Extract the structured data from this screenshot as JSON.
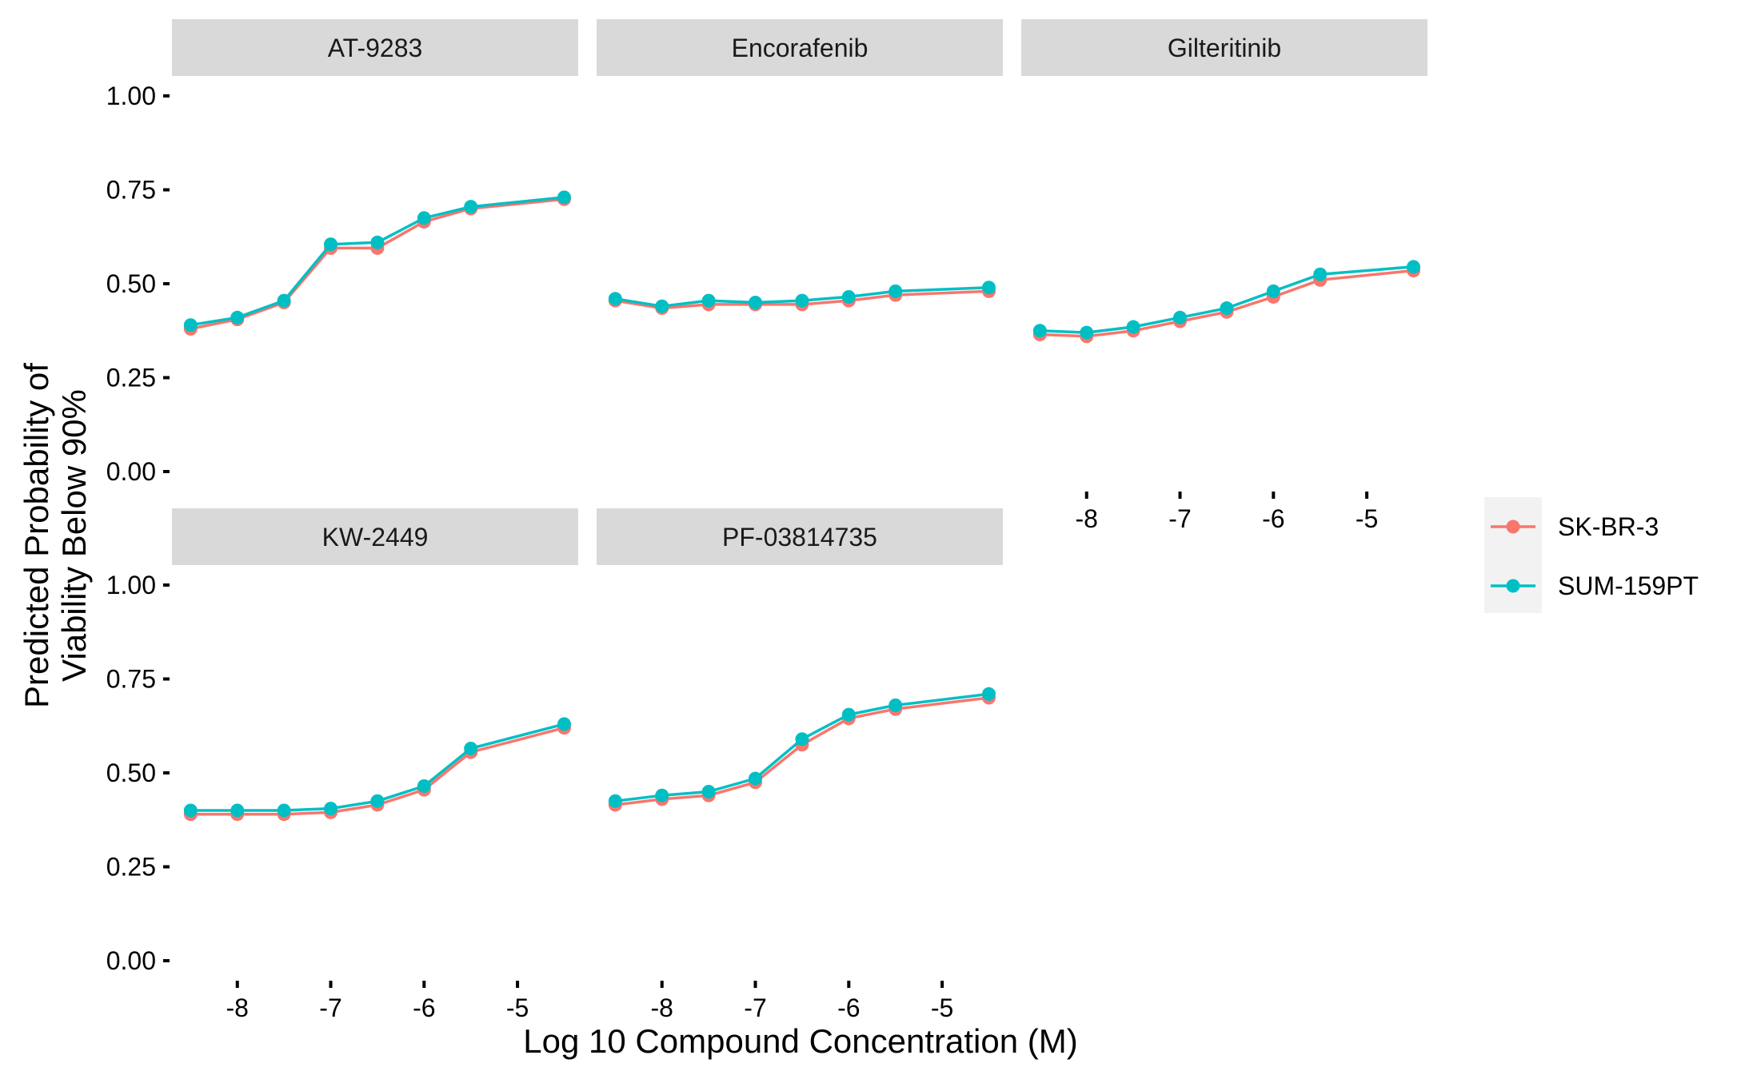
{
  "chart_data": {
    "type": "line",
    "xlabel": "Log 10 Compound Concentration (M)",
    "ylabel_lines": [
      "Predicted Probability of",
      "Viability Below 90%"
    ],
    "x_ticks": [
      -8,
      -7,
      -6,
      -5
    ],
    "x_tick_labels": [
      "-8",
      "-7",
      "-6",
      "-5"
    ],
    "xlim": [
      -8.7,
      -4.35
    ],
    "y_ticks": [
      0,
      0.25,
      0.5,
      0.75,
      1
    ],
    "y_tick_labels": [
      "0.00",
      "0.25",
      "0.50",
      "0.75",
      "1.00"
    ],
    "ylim": [
      0,
      1
    ],
    "grid": false,
    "legend_placement": "right",
    "x": [
      -8.5,
      -8,
      -7.5,
      -7,
      -6.5,
      -6,
      -5.5,
      -4.5
    ],
    "series_styles": [
      {
        "name": "SK-BR-3",
        "color": "#F8766D"
      },
      {
        "name": "SUM-159PT",
        "color": "#00BFC4"
      }
    ],
    "panels": [
      {
        "title": "AT-9283",
        "series": [
          {
            "name": "SK-BR-3",
            "values": [
              0.38,
              0.405,
              0.45,
              0.595,
              0.595,
              0.665,
              0.7,
              0.725
            ]
          },
          {
            "name": "SUM-159PT",
            "values": [
              0.39,
              0.41,
              0.455,
              0.605,
              0.61,
              0.675,
              0.705,
              0.73
            ]
          }
        ]
      },
      {
        "title": "Encorafenib",
        "series": [
          {
            "name": "SK-BR-3",
            "values": [
              0.455,
              0.435,
              0.445,
              0.445,
              0.445,
              0.455,
              0.47,
              0.48
            ]
          },
          {
            "name": "SUM-159PT",
            "values": [
              0.46,
              0.44,
              0.455,
              0.45,
              0.455,
              0.465,
              0.48,
              0.49
            ]
          }
        ]
      },
      {
        "title": "Gilteritinib",
        "series": [
          {
            "name": "SK-BR-3",
            "values": [
              0.365,
              0.36,
              0.375,
              0.4,
              0.425,
              0.465,
              0.51,
              0.535
            ]
          },
          {
            "name": "SUM-159PT",
            "values": [
              0.375,
              0.37,
              0.385,
              0.41,
              0.435,
              0.48,
              0.525,
              0.545
            ]
          }
        ]
      },
      {
        "title": "KW-2449",
        "series": [
          {
            "name": "SK-BR-3",
            "values": [
              0.39,
              0.39,
              0.39,
              0.395,
              0.415,
              0.455,
              0.555,
              0.62
            ]
          },
          {
            "name": "SUM-159PT",
            "values": [
              0.4,
              0.4,
              0.4,
              0.405,
              0.425,
              0.465,
              0.565,
              0.63
            ]
          }
        ]
      },
      {
        "title": "PF-03814735",
        "series": [
          {
            "name": "SK-BR-3",
            "values": [
              0.415,
              0.43,
              0.44,
              0.475,
              0.575,
              0.645,
              0.67,
              0.7
            ]
          },
          {
            "name": "SUM-159PT",
            "values": [
              0.425,
              0.44,
              0.45,
              0.485,
              0.59,
              0.655,
              0.68,
              0.71
            ]
          }
        ]
      }
    ]
  }
}
